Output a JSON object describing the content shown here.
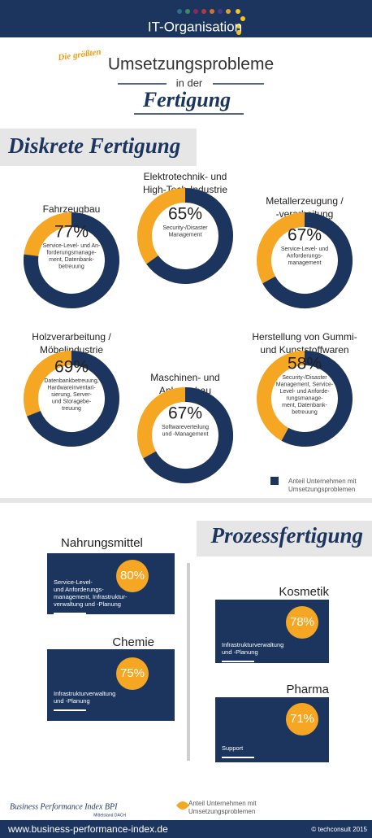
{
  "header": {
    "title": "IT-Organisation"
  },
  "headline": {
    "pre": "Die größten",
    "main": "Umsetzungsprobleme",
    "mid": "in der",
    "last": "Fertigung"
  },
  "discrete": {
    "title": "Diskrete Fertigung",
    "items": [
      {
        "name": [
          "Fahrzeugbau"
        ],
        "value": 77,
        "value_label": "77%",
        "desc": [
          "Service-Level- und An-",
          "forderungsmanage-",
          "ment, Datenbank-",
          "betreuung"
        ]
      },
      {
        "name": [
          "Elektrotechnik- und",
          "High-Tech-Industrie"
        ],
        "value": 65,
        "value_label": "65%",
        "desc": [
          "Security-/Disaster",
          "Management"
        ]
      },
      {
        "name": [
          "Metallerzeugung /",
          "-verarbeitung"
        ],
        "value": 67,
        "value_label": "67%",
        "desc": [
          "Service-Level- und",
          "Anforderungs-",
          "management"
        ]
      },
      {
        "name": [
          "Holzverarbeitung /",
          "Möbelindustrie"
        ],
        "value": 69,
        "value_label": "69%",
        "desc": [
          "Datenbankbetreuung,",
          "Hardwareinventari-",
          "sierung, Server-",
          "und Storagebe-",
          "treuung"
        ]
      },
      {
        "name": [
          "Maschinen- und",
          "Anlagenbau"
        ],
        "value": 67,
        "value_label": "67%",
        "desc": [
          "Softwareverteilung",
          "und -Management"
        ]
      },
      {
        "name": [
          "Herstellung von Gummi-",
          "und Kunststoffwaren"
        ],
        "value": 58,
        "value_label": "58%",
        "desc": [
          "Security-/Disaster",
          "Management, Service-",
          "Level- und Anforde-",
          "rungsmanage-",
          "ment, Datenbank-",
          "betreuung"
        ]
      }
    ],
    "legend": [
      "Anteil Unternehmen mit",
      "Umsetzungsproblemen"
    ]
  },
  "process": {
    "title": "Prozessfertigung",
    "items": [
      {
        "name": "Nahrungsmittel",
        "value": 80,
        "value_label": "80%",
        "desc": [
          "Service-Level-",
          "und Anforderungs-",
          "management, Infrastruktur-",
          "verwaltung und -Planung"
        ]
      },
      {
        "name": "Kosmetik",
        "value": 78,
        "value_label": "78%",
        "desc": [
          "Infrastrukturverwaltung",
          "und -Planung"
        ]
      },
      {
        "name": "Chemie",
        "value": 75,
        "value_label": "75%",
        "desc": [
          "Infrastrukturverwaltung",
          "und -Planung"
        ]
      },
      {
        "name": "Pharma",
        "value": 71,
        "value_label": "71%",
        "desc": [
          "Support"
        ]
      }
    ],
    "legend": [
      "Anteil Unternehmen mit",
      "Umsetzungsproblemen"
    ]
  },
  "footer": {
    "brand": "Business Performance Index BPI",
    "sub": "Mittelstand DACH",
    "url": "www.business-performance-index.de",
    "copyright": "© techconsult 2015"
  }
}
